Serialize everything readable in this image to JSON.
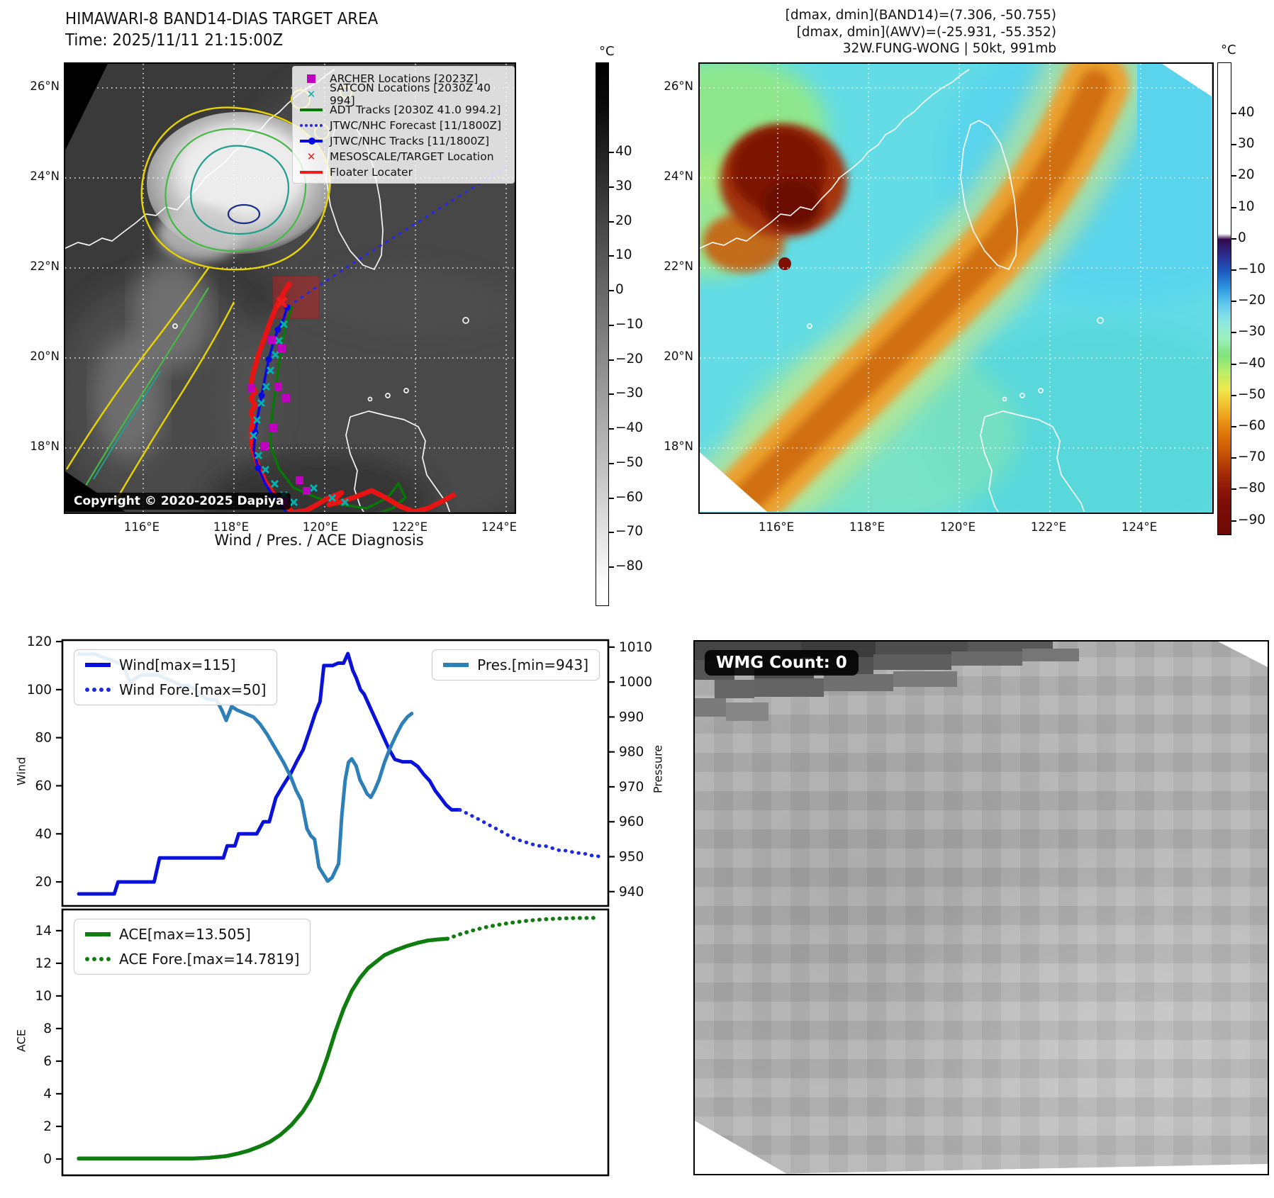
{
  "top_left": {
    "title": "HIMAWARI-8 BAND14-DIAS TARGET AREA",
    "time_line": "Time: 2025/11/11 21:15:00Z",
    "copyright": "Copyright © 2020-2025 Dapiya",
    "lat_labels": [
      "26°N",
      "24°N",
      "22°N",
      "20°N",
      "18°N"
    ],
    "lon_labels": [
      "116°E",
      "118°E",
      "120°E",
      "122°E",
      "124°E"
    ],
    "colorbar": {
      "unit": "°C",
      "ticks": [
        "40",
        "30",
        "20",
        "10",
        "0",
        "−10",
        "−20",
        "−30",
        "−40",
        "−50",
        "−60",
        "−70",
        "−80"
      ]
    },
    "legend": [
      {
        "label": "ARCHER Locations [2023Z]",
        "marker": "square",
        "color": "#bf00bf"
      },
      {
        "label": "SATCON Locations [2030Z 40 994]",
        "marker": "x",
        "color": "#00b2b2"
      },
      {
        "label": "ADT Tracks [2030Z 41.0 994.2]",
        "marker": "line",
        "color": "#067806"
      },
      {
        "label": "JTWC/NHC Forecast [11/1800Z]",
        "marker": "dotted",
        "color": "#2727e8"
      },
      {
        "label": "JTWC/NHC Tracks [11/1800Z]",
        "marker": "line-dot",
        "color": "#0808e0"
      },
      {
        "label": "MESOSCALE/TARGET Location",
        "marker": "x",
        "color": "#ee1c1c"
      },
      {
        "label": "Floater Locater",
        "marker": "line",
        "color": "#ee1c1c"
      }
    ]
  },
  "top_right": {
    "header_lines": [
      "[dmax, dmin](BAND14)=(7.306, -50.755)",
      "[dmax, dmin](AWV)=(-25.931, -55.352)",
      "32W.FUNG-WONG | 50kt, 991mb"
    ],
    "lat_labels": [
      "26°N",
      "24°N",
      "22°N",
      "20°N",
      "18°N"
    ],
    "lon_labels": [
      "116°E",
      "118°E",
      "120°E",
      "122°E",
      "124°E"
    ],
    "colorbar": {
      "unit": "°C",
      "ticks": [
        "40",
        "30",
        "20",
        "10",
        "0",
        "−10",
        "−20",
        "−30",
        "−40",
        "−50",
        "−60",
        "−70",
        "−80",
        "−90"
      ]
    }
  },
  "bottom_left": {
    "title": "Wind / Pres. / ACE Diagnosis"
  },
  "bottom_right": {
    "badge": "WMG Count: 0"
  },
  "chart_data": [
    {
      "type": "line",
      "title": "Wind / Pres. / ACE Diagnosis",
      "xlabel": "",
      "ylabel": "Wind",
      "y2label": "Pressure",
      "xlim": [
        0,
        1
      ],
      "ylim": [
        10,
        120.6
      ],
      "yticks": [
        20,
        40,
        60,
        80,
        100,
        120
      ],
      "y2lim": [
        935.9,
        1012
      ],
      "y2ticks": [
        940,
        950,
        960,
        970,
        980,
        990,
        1000,
        1010
      ],
      "grid": false,
      "legend_groups": [
        {
          "series": [
            0,
            1
          ],
          "pos": "left"
        },
        {
          "series": [
            2
          ],
          "pos": "right"
        }
      ],
      "series": [
        {
          "name": "Wind[max=115]",
          "color": "#0a12da",
          "style": "solid",
          "width": 5,
          "axis": "y",
          "points": [
            [
              0.03,
              15
            ],
            [
              0.075,
              15
            ],
            [
              0.095,
              15
            ],
            [
              0.102,
              20
            ],
            [
              0.155,
              20
            ],
            [
              0.168,
              20
            ],
            [
              0.178,
              30
            ],
            [
              0.23,
              30
            ],
            [
              0.285,
              30
            ],
            [
              0.295,
              30
            ],
            [
              0.302,
              35
            ],
            [
              0.316,
              35
            ],
            [
              0.323,
              40
            ],
            [
              0.356,
              40
            ],
            [
              0.368,
              45
            ],
            [
              0.379,
              45
            ],
            [
              0.391,
              55
            ],
            [
              0.404,
              60
            ],
            [
              0.418,
              65
            ],
            [
              0.429,
              70
            ],
            [
              0.441,
              75
            ],
            [
              0.453,
              83
            ],
            [
              0.463,
              90
            ],
            [
              0.472,
              95
            ],
            [
              0.479,
              110
            ],
            [
              0.495,
              110
            ],
            [
              0.505,
              111
            ],
            [
              0.515,
              111
            ],
            [
              0.523,
              115
            ],
            [
              0.532,
              108
            ],
            [
              0.538,
              105
            ],
            [
              0.546,
              100
            ],
            [
              0.553,
              98
            ],
            [
              0.559,
              95
            ],
            [
              0.569,
              90
            ],
            [
              0.579,
              85
            ],
            [
              0.589,
              80
            ],
            [
              0.599,
              75
            ],
            [
              0.609,
              71
            ],
            [
              0.623,
              70
            ],
            [
              0.639,
              70
            ],
            [
              0.651,
              68
            ],
            [
              0.661,
              65
            ],
            [
              0.673,
              62
            ],
            [
              0.683,
              58
            ],
            [
              0.693,
              55
            ],
            [
              0.703,
              52
            ],
            [
              0.713,
              50
            ],
            [
              0.728,
              50
            ]
          ]
        },
        {
          "name": "Wind Fore.[max=50]",
          "color": "#1d2ae4",
          "style": "dotted",
          "width": 5,
          "axis": "y",
          "points": [
            [
              0.728,
              50
            ],
            [
              0.746,
              48
            ],
            [
              0.763,
              46
            ],
            [
              0.779,
              44
            ],
            [
              0.796,
              42
            ],
            [
              0.812,
              40
            ],
            [
              0.828,
              38
            ],
            [
              0.842,
              37
            ],
            [
              0.856,
              36
            ],
            [
              0.87,
              35
            ],
            [
              0.884,
              35
            ],
            [
              0.898,
              34
            ],
            [
              0.912,
              33
            ],
            [
              0.926,
              33
            ],
            [
              0.94,
              32
            ],
            [
              0.954,
              32
            ],
            [
              0.966,
              31
            ],
            [
              0.978,
              31
            ],
            [
              0.988,
              30
            ]
          ]
        },
        {
          "name": "Pres.[min=943]",
          "color": "#2d7fb8",
          "style": "solid",
          "width": 5,
          "axis": "y2",
          "points": [
            [
              0.03,
              1008
            ],
            [
              0.06,
              1008
            ],
            [
              0.075,
              1007
            ],
            [
              0.095,
              1006
            ],
            [
              0.11,
              1005
            ],
            [
              0.118,
              1002
            ],
            [
              0.125,
              1000
            ],
            [
              0.133,
              1001
            ],
            [
              0.145,
              1002
            ],
            [
              0.16,
              1002
            ],
            [
              0.175,
              1002
            ],
            [
              0.19,
              1001
            ],
            [
              0.205,
              1000
            ],
            [
              0.218,
              999
            ],
            [
              0.23,
              999
            ],
            [
              0.242,
              998
            ],
            [
              0.255,
              996
            ],
            [
              0.268,
              995
            ],
            [
              0.282,
              995
            ],
            [
              0.292,
              992
            ],
            [
              0.3,
              989
            ],
            [
              0.31,
              993
            ],
            [
              0.32,
              992
            ],
            [
              0.335,
              991
            ],
            [
              0.35,
              990
            ],
            [
              0.362,
              988
            ],
            [
              0.375,
              985
            ],
            [
              0.39,
              981
            ],
            [
              0.405,
              977
            ],
            [
              0.418,
              973
            ],
            [
              0.428,
              969
            ],
            [
              0.438,
              966
            ],
            [
              0.448,
              958
            ],
            [
              0.455,
              956
            ],
            [
              0.462,
              955
            ],
            [
              0.47,
              947
            ],
            [
              0.478,
              945
            ],
            [
              0.486,
              943
            ],
            [
              0.494,
              944
            ],
            [
              0.5,
              946
            ],
            [
              0.506,
              948
            ],
            [
              0.512,
              962
            ],
            [
              0.518,
              972
            ],
            [
              0.524,
              977
            ],
            [
              0.53,
              978
            ],
            [
              0.538,
              976
            ],
            [
              0.545,
              972
            ],
            [
              0.552,
              970
            ],
            [
              0.558,
              968
            ],
            [
              0.565,
              967
            ],
            [
              0.572,
              969
            ],
            [
              0.58,
              972
            ],
            [
              0.59,
              977
            ],
            [
              0.6,
              981
            ],
            [
              0.612,
              985
            ],
            [
              0.622,
              988
            ],
            [
              0.632,
              990
            ],
            [
              0.64,
              991
            ]
          ]
        }
      ]
    },
    {
      "type": "line",
      "title": "",
      "xlabel": "",
      "ylabel": "ACE",
      "xlim": [
        0,
        1
      ],
      "ylim": [
        -1.0,
        15.3
      ],
      "yticks": [
        0,
        2,
        4,
        6,
        8,
        10,
        12,
        14
      ],
      "grid": false,
      "legend_groups": [
        {
          "series": [
            0,
            1
          ],
          "pos": "left"
        }
      ],
      "series": [
        {
          "name": "ACE[max=13.505]",
          "color": "#0e7c0e",
          "style": "solid",
          "width": 5.5,
          "axis": "y",
          "points": [
            [
              0.03,
              0.03
            ],
            [
              0.1,
              0.03
            ],
            [
              0.18,
              0.03
            ],
            [
              0.24,
              0.03
            ],
            [
              0.27,
              0.08
            ],
            [
              0.3,
              0.18
            ],
            [
              0.32,
              0.32
            ],
            [
              0.34,
              0.5
            ],
            [
              0.36,
              0.75
            ],
            [
              0.38,
              1.05
            ],
            [
              0.4,
              1.5
            ],
            [
              0.42,
              2.1
            ],
            [
              0.44,
              2.9
            ],
            [
              0.455,
              3.7
            ],
            [
              0.47,
              4.8
            ],
            [
              0.485,
              6.2
            ],
            [
              0.5,
              7.8
            ],
            [
              0.515,
              9.2
            ],
            [
              0.53,
              10.3
            ],
            [
              0.545,
              11.1
            ],
            [
              0.56,
              11.7
            ],
            [
              0.575,
              12.1
            ],
            [
              0.59,
              12.5
            ],
            [
              0.61,
              12.8
            ],
            [
              0.63,
              13.05
            ],
            [
              0.65,
              13.25
            ],
            [
              0.67,
              13.4
            ],
            [
              0.69,
              13.47
            ],
            [
              0.705,
              13.505
            ]
          ]
        },
        {
          "name": "ACE Fore.[max=14.7819]",
          "color": "#0e7c0e",
          "style": "dotted",
          "width": 5.5,
          "axis": "y",
          "points": [
            [
              0.705,
              13.505
            ],
            [
              0.73,
              13.8
            ],
            [
              0.755,
              14.05
            ],
            [
              0.78,
              14.25
            ],
            [
              0.805,
              14.4
            ],
            [
              0.83,
              14.52
            ],
            [
              0.855,
              14.62
            ],
            [
              0.88,
              14.69
            ],
            [
              0.905,
              14.74
            ],
            [
              0.93,
              14.77
            ],
            [
              0.955,
              14.78
            ],
            [
              0.98,
              14.7819
            ]
          ]
        }
      ]
    }
  ]
}
